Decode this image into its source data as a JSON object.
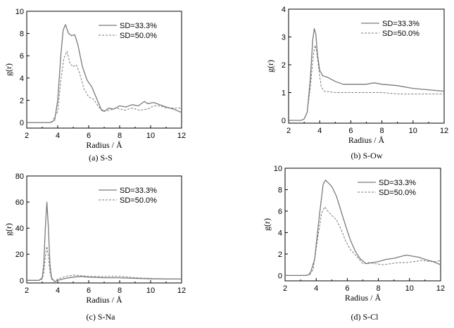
{
  "chart_data": [
    {
      "type": "line",
      "caption": "(a) S-S",
      "xlabel": "Radius / Å",
      "ylabel": "g(r)",
      "xlim": [
        2,
        12
      ],
      "ylim": [
        -0.5,
        10
      ],
      "xticks": [
        2,
        4,
        6,
        8,
        10,
        12
      ],
      "yticks": [
        0,
        2,
        4,
        6,
        8,
        10
      ],
      "legend_position": "top-right",
      "series": [
        {
          "name": "SD=33.3%",
          "style": "solid",
          "x": [
            2,
            3.5,
            3.8,
            4.0,
            4.2,
            4.35,
            4.5,
            4.7,
            4.9,
            5.1,
            5.3,
            5.6,
            5.9,
            6.2,
            6.5,
            6.8,
            7.0,
            7.3,
            7.6,
            8.0,
            8.4,
            8.8,
            9.2,
            9.6,
            9.8,
            10.2,
            10.6,
            11.0,
            11.5,
            12
          ],
          "y": [
            0,
            0,
            0.2,
            2.0,
            6.0,
            8.3,
            8.8,
            8.0,
            7.8,
            7.9,
            7.0,
            5.0,
            3.8,
            3.2,
            2.2,
            1.2,
            1.0,
            1.3,
            1.2,
            1.5,
            1.4,
            1.6,
            1.5,
            1.9,
            1.7,
            1.8,
            1.6,
            1.4,
            1.2,
            0.9
          ]
        },
        {
          "name": "SD=50.0%",
          "style": "dashed",
          "x": [
            2,
            3.6,
            4.0,
            4.2,
            4.4,
            4.6,
            4.8,
            5.0,
            5.2,
            5.4,
            5.7,
            6.0,
            6.3,
            6.6,
            6.9,
            7.3,
            7.8,
            8.3,
            8.8,
            9.3,
            9.8,
            10.2,
            10.6,
            11.0,
            11.5,
            12
          ],
          "y": [
            0,
            0,
            1.0,
            3.8,
            5.8,
            6.4,
            5.3,
            5.0,
            5.2,
            4.5,
            3.0,
            2.3,
            2.1,
            1.5,
            1.0,
            1.1,
            1.3,
            1.1,
            1.3,
            1.1,
            1.2,
            1.5,
            1.5,
            1.3,
            1.3,
            1.3
          ]
        }
      ]
    },
    {
      "type": "line",
      "caption": "(b) S-Ow",
      "xlabel": "Radius / Å",
      "ylabel": "g(r)",
      "xlim": [
        2,
        12
      ],
      "ylim": [
        -0.1,
        4
      ],
      "xticks": [
        2,
        4,
        6,
        8,
        10,
        12
      ],
      "yticks": [
        0,
        1,
        2,
        3,
        4
      ],
      "legend_position": "top-right",
      "series": [
        {
          "name": "SD=33.3%",
          "style": "solid",
          "x": [
            2,
            2.8,
            3.0,
            3.2,
            3.4,
            3.55,
            3.65,
            3.75,
            3.85,
            4.0,
            4.2,
            4.5,
            5.0,
            5.5,
            6.0,
            7.0,
            7.5,
            8.0,
            9.0,
            10.0,
            11.0,
            12
          ],
          "y": [
            0,
            0,
            0.05,
            0.3,
            1.5,
            2.9,
            3.3,
            3.1,
            2.4,
            1.8,
            1.6,
            1.55,
            1.4,
            1.3,
            1.3,
            1.3,
            1.35,
            1.3,
            1.25,
            1.15,
            1.1,
            1.05
          ]
        },
        {
          "name": "SD=50.0%",
          "style": "dashed",
          "x": [
            2,
            2.8,
            3.0,
            3.2,
            3.4,
            3.6,
            3.7,
            3.8,
            3.95,
            4.1,
            4.3,
            5.0,
            6.0,
            7.0,
            8.0,
            9.0,
            10.0,
            11.0,
            12
          ],
          "y": [
            0,
            0,
            0.05,
            0.3,
            1.2,
            2.4,
            2.7,
            2.5,
            1.8,
            1.2,
            1.05,
            1.0,
            1.0,
            1.0,
            1.0,
            0.95,
            0.95,
            0.95,
            0.95
          ]
        }
      ]
    },
    {
      "type": "line",
      "caption": "(c) S-Na",
      "xlabel": "Radius / Å",
      "ylabel": "g(r)",
      "xlim": [
        2,
        12
      ],
      "ylim": [
        -2,
        80
      ],
      "xticks": [
        2,
        4,
        6,
        8,
        10,
        12
      ],
      "yticks": [
        0,
        20,
        40,
        60,
        80
      ],
      "legend_position": "top-right",
      "series": [
        {
          "name": "SD=33.3%",
          "style": "solid",
          "x": [
            2,
            2.8,
            3.0,
            3.1,
            3.2,
            3.3,
            3.4,
            3.5,
            3.6,
            3.8,
            4.0,
            4.5,
            5.0,
            5.5,
            6.0,
            7.0,
            8.0,
            9.0,
            10.0,
            11.0,
            12
          ],
          "y": [
            0,
            0,
            2,
            12,
            40,
            60,
            40,
            12,
            2,
            -1,
            0,
            1.5,
            2.5,
            3,
            2.5,
            2,
            2,
            1.5,
            1.2,
            1.0,
            1.0
          ]
        },
        {
          "name": "SD=50.0%",
          "style": "dashed",
          "x": [
            2,
            2.8,
            3.0,
            3.1,
            3.2,
            3.3,
            3.4,
            3.5,
            3.6,
            3.8,
            4.0,
            4.5,
            5.0,
            5.5,
            6.0,
            7.0,
            8.0,
            9.0,
            10.0,
            11.0,
            12
          ],
          "y": [
            0,
            0,
            1,
            6,
            18,
            26,
            18,
            6,
            1,
            -1,
            1,
            3,
            4,
            3.5,
            3,
            3,
            3.2,
            2,
            1.5,
            1.2,
            1.0
          ]
        }
      ]
    },
    {
      "type": "line",
      "caption": "(d) S-Cl",
      "xlabel": "Radius / Å",
      "ylabel": "g(r)",
      "xlim": [
        2,
        12
      ],
      "ylim": [
        -0.5,
        10
      ],
      "xticks": [
        2,
        4,
        6,
        8,
        10,
        12
      ],
      "yticks": [
        0,
        2,
        4,
        6,
        8,
        10
      ],
      "legend_position": "top-right",
      "series": [
        {
          "name": "SD=33.3%",
          "style": "solid",
          "x": [
            2,
            3.3,
            3.6,
            3.9,
            4.2,
            4.45,
            4.6,
            4.8,
            5.0,
            5.3,
            5.6,
            5.9,
            6.2,
            6.5,
            6.8,
            7.2,
            7.6,
            8.0,
            8.5,
            9.0,
            9.5,
            9.8,
            10.2,
            10.6,
            11.0,
            11.5,
            12
          ],
          "y": [
            0,
            0,
            0.1,
            1.5,
            5.5,
            8.5,
            8.9,
            8.6,
            8.3,
            7.4,
            6.0,
            4.6,
            3.3,
            2.3,
            1.6,
            1.1,
            1.2,
            1.3,
            1.5,
            1.6,
            1.8,
            1.9,
            1.8,
            1.7,
            1.5,
            1.3,
            1.0
          ]
        },
        {
          "name": "SD=50.0%",
          "style": "dashed",
          "x": [
            2,
            3.4,
            3.8,
            4.1,
            4.35,
            4.55,
            4.75,
            5.0,
            5.3,
            5.6,
            5.9,
            6.2,
            6.6,
            7.0,
            7.4,
            7.8,
            8.3,
            8.8,
            9.3,
            9.8,
            10.3,
            10.8,
            11.3,
            11.7,
            12
          ],
          "y": [
            0,
            0,
            0.5,
            3.5,
            5.8,
            6.4,
            6.0,
            5.6,
            5.2,
            4.3,
            3.2,
            2.4,
            1.8,
            1.1,
            1.2,
            1.1,
            1.0,
            1.1,
            1.2,
            1.2,
            1.3,
            1.4,
            1.3,
            1.3,
            1.4
          ]
        }
      ]
    }
  ]
}
